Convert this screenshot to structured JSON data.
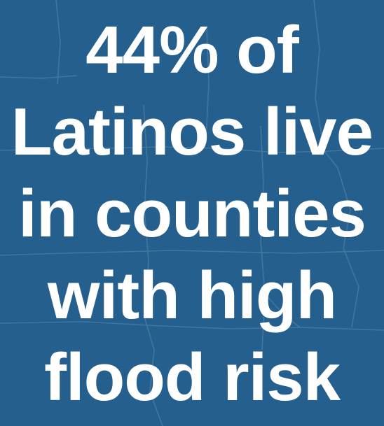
{
  "headline": {
    "lines": [
      "44% of",
      "Latinos live",
      "in counties",
      "with high",
      "flood risk"
    ]
  },
  "colors": {
    "background": "#245f8d",
    "map_lines": "#4e7fa8",
    "text": "#ffffff"
  },
  "background_icon": "us-map-outline"
}
